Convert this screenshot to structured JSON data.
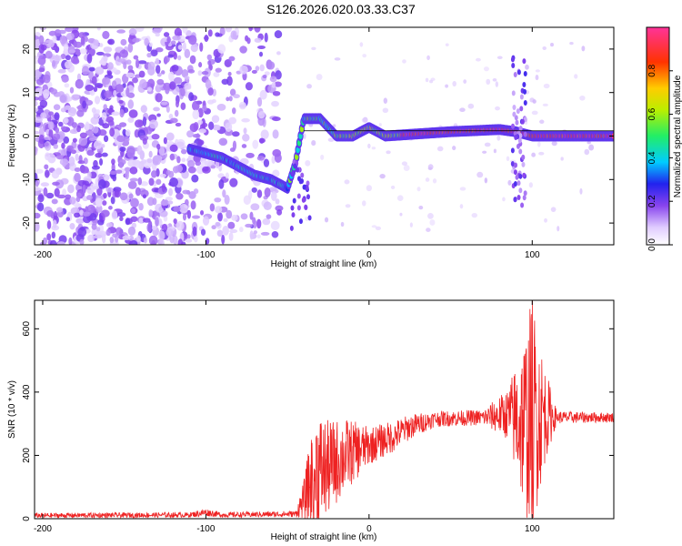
{
  "title": "S126.2026.020.03.33.C37",
  "chart_data": [
    {
      "type": "heatmap",
      "xlabel": "Height of straight line (km)",
      "ylabel": "Frequency (Hz)",
      "xlim": [
        -205,
        150
      ],
      "ylim": [
        -25,
        25
      ],
      "xticks": [
        -200,
        -100,
        0,
        100
      ],
      "yticks": [
        -20,
        -10,
        0,
        10,
        20
      ],
      "colorbar": {
        "label": "Normalized spectral amplitude",
        "range": [
          0,
          1
        ],
        "ticks": [
          "0.0",
          "0.2",
          "0.4",
          "0.6",
          "0.8"
        ]
      },
      "ridge": [
        {
          "x": -110,
          "y": -3
        },
        {
          "x": -100,
          "y": -4
        },
        {
          "x": -90,
          "y": -5
        },
        {
          "x": -80,
          "y": -7
        },
        {
          "x": -70,
          "y": -9
        },
        {
          "x": -60,
          "y": -10
        },
        {
          "x": -50,
          "y": -12
        },
        {
          "x": -45,
          "y": -6
        },
        {
          "x": -40,
          "y": 4
        },
        {
          "x": -30,
          "y": 4
        },
        {
          "x": -20,
          "y": 0
        },
        {
          "x": -10,
          "y": 0
        },
        {
          "x": 0,
          "y": 2
        },
        {
          "x": 10,
          "y": 0
        },
        {
          "x": 50,
          "y": 1
        },
        {
          "x": 80,
          "y": 1.5
        },
        {
          "x": 90,
          "y": 1
        },
        {
          "x": 100,
          "y": 0
        },
        {
          "x": 150,
          "y": 0
        }
      ]
    },
    {
      "type": "line",
      "xlabel": "Height of straight line (km)",
      "ylabel": "SNR (10 * v/v)",
      "xlim": [
        -205,
        150
      ],
      "ylim": [
        0,
        690
      ],
      "xticks": [
        -200,
        -100,
        0,
        100
      ],
      "yticks": [
        0,
        200,
        400,
        600
      ],
      "series": [
        {
          "color": "#ee2222",
          "envelope": [
            {
              "x": -205,
              "base": 10,
              "amp": 8
            },
            {
              "x": -110,
              "base": 12,
              "amp": 8
            },
            {
              "x": -100,
              "base": 20,
              "amp": 12
            },
            {
              "x": -90,
              "base": 12,
              "amp": 8
            },
            {
              "x": -45,
              "base": 15,
              "amp": 10
            },
            {
              "x": -40,
              "base": 60,
              "amp": 60
            },
            {
              "x": -33,
              "base": 150,
              "amp": 200
            },
            {
              "x": -25,
              "base": 160,
              "amp": 150
            },
            {
              "x": -15,
              "base": 200,
              "amp": 120
            },
            {
              "x": 0,
              "base": 230,
              "amp": 60
            },
            {
              "x": 15,
              "base": 260,
              "amp": 50
            },
            {
              "x": 25,
              "base": 290,
              "amp": 40
            },
            {
              "x": 40,
              "base": 315,
              "amp": 25
            },
            {
              "x": 70,
              "base": 320,
              "amp": 25
            },
            {
              "x": 85,
              "base": 330,
              "amp": 80
            },
            {
              "x": 95,
              "base": 300,
              "amp": 280
            },
            {
              "x": 100,
              "base": 330,
              "amp": 380
            },
            {
              "x": 108,
              "base": 330,
              "amp": 150
            },
            {
              "x": 115,
              "base": 320,
              "amp": 20
            },
            {
              "x": 150,
              "base": 320,
              "amp": 15
            }
          ]
        }
      ]
    }
  ]
}
